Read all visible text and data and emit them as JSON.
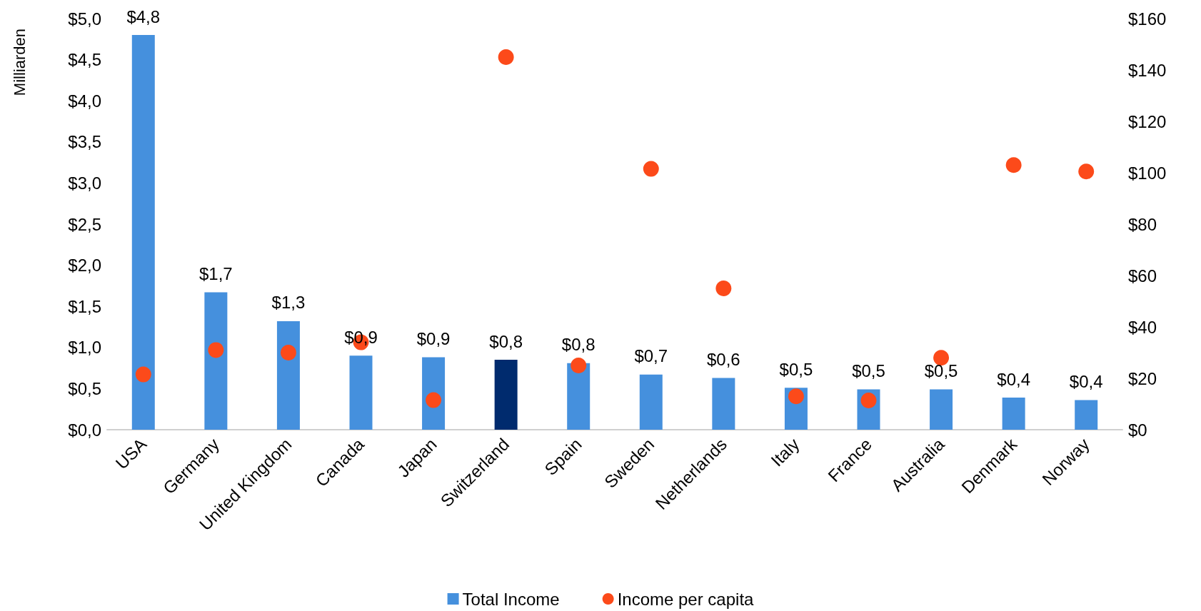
{
  "chart_data": {
    "type": "bar",
    "ylabel": "Milliarden",
    "categories": [
      "USA",
      "Germany",
      "United Kingdom",
      "Canada",
      "Japan",
      "Switzerland",
      "Spain",
      "Sweden",
      "Netherlands",
      "Italy",
      "France",
      "Australia",
      "Denmark",
      "Norway"
    ],
    "series": [
      {
        "name": "Total Income",
        "color": "#4590dd",
        "colors": [
          "#4590dd",
          "#4590dd",
          "#4590dd",
          "#4590dd",
          "#4590dd",
          "#002b6e",
          "#4590dd",
          "#4590dd",
          "#4590dd",
          "#4590dd",
          "#4590dd",
          "#4590dd",
          "#4590dd",
          "#4590dd"
        ],
        "values": [
          4.8,
          1.67,
          1.32,
          0.9,
          0.88,
          0.85,
          0.81,
          0.67,
          0.63,
          0.51,
          0.49,
          0.49,
          0.39,
          0.36
        ],
        "value_labels": [
          "$4,8",
          "$1,7",
          "$1,3",
          "$0,9",
          "$0,9",
          "$0,8",
          "$0,8",
          "$0,7",
          "$0,6",
          "$0,5",
          "$0,5",
          "$0,5",
          "$0,4",
          "$0,4"
        ]
      },
      {
        "name": "Income per capita",
        "type": "scatter",
        "axis": "y2",
        "marker": "circle",
        "color": "#fc4a1a",
        "x": [
          "USA",
          "Germany",
          "United Kingdom",
          "Canada",
          "Japan",
          "Switzerland",
          "Spain",
          "Sweden",
          "Netherlands",
          "Italy",
          "France",
          "Australia",
          "Denmark",
          "Norway"
        ],
        "values": [
          21.5,
          31,
          30,
          34,
          11.5,
          145,
          25,
          101.5,
          55,
          13,
          11.4,
          28,
          103,
          100.5
        ]
      }
    ],
    "ylim": [
      0,
      5
    ],
    "yticks": [
      {
        "value": 0,
        "label": "$0,0"
      },
      {
        "value": 0.5,
        "label": "$0,5"
      },
      {
        "value": 1,
        "label": "$1,0"
      },
      {
        "value": 1.5,
        "label": "$1,5"
      },
      {
        "value": 2,
        "label": "$2,0"
      },
      {
        "value": 2.5,
        "label": "$2,5"
      },
      {
        "value": 3,
        "label": "$3,0"
      },
      {
        "value": 3.5,
        "label": "$3,5"
      },
      {
        "value": 4,
        "label": "$4,0"
      },
      {
        "value": 4.5,
        "label": "$4,5"
      },
      {
        "value": 5,
        "label": "$5,0"
      }
    ],
    "y2lim": [
      0,
      160
    ],
    "y2ticks": [
      {
        "value": 0,
        "label": "$0"
      },
      {
        "value": 20,
        "label": "$20"
      },
      {
        "value": 40,
        "label": "$40"
      },
      {
        "value": 60,
        "label": "$60"
      },
      {
        "value": 80,
        "label": "$80"
      },
      {
        "value": 100,
        "label": "$100"
      },
      {
        "value": 120,
        "label": "$120"
      },
      {
        "value": 140,
        "label": "$140"
      },
      {
        "value": 160,
        "label": "$160"
      }
    ],
    "grid": false,
    "legend": "bottom"
  }
}
